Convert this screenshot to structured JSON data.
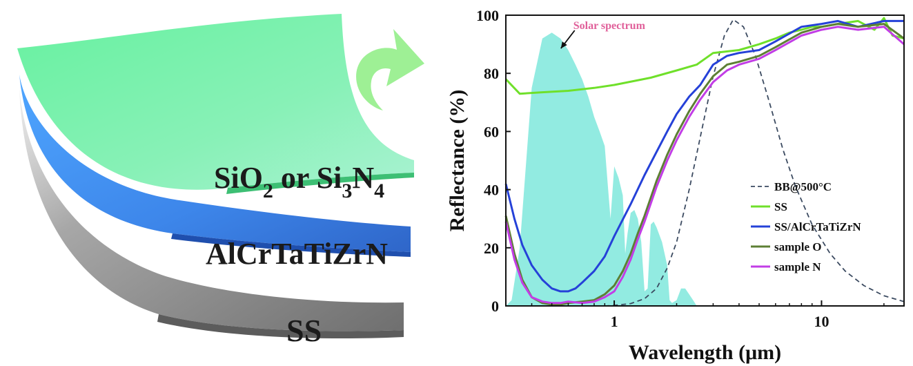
{
  "illustration": {
    "layers": [
      {
        "name": "SiO2 or Si3N4",
        "color": "#7af3a4"
      },
      {
        "name": "AlCrTaTiZrN",
        "color": "#3c8ef0"
      },
      {
        "name": "SS",
        "color": "#8a8a8a"
      }
    ],
    "top_label": {
      "part1": "SiO",
      "sub1": "2",
      "part2": " or Si",
      "sub2": "3",
      "part3": "N",
      "sub3": "4"
    },
    "middle_label": "AlCrTaTiZrN",
    "bottom_label": "SS",
    "arrow_icon": "curved-arrow-icon",
    "arrow_color": "#8ff27a"
  },
  "chart_data": {
    "type": "line",
    "title": "",
    "xlabel": "Wavelength (μm)",
    "ylabel": "Reflectance (%)",
    "xscale": "log",
    "xlim": [
      0.3,
      25
    ],
    "ylim": [
      0,
      100
    ],
    "x_ticks": [
      {
        "value": 1,
        "label": "1"
      },
      {
        "value": 10,
        "label": "10"
      }
    ],
    "y_ticks": [
      {
        "value": 0,
        "label": "0"
      },
      {
        "value": 20,
        "label": "20"
      },
      {
        "value": 40,
        "label": "40"
      },
      {
        "value": 60,
        "label": "60"
      },
      {
        "value": 80,
        "label": "80"
      },
      {
        "value": 100,
        "label": "100"
      }
    ],
    "legend_position": "lower-right",
    "annotation": {
      "text": "Solar spectrum",
      "color": "#e0609a",
      "points_to": [
        0.52,
        90
      ]
    },
    "solar_spectrum": {
      "color": "#7fe8dc",
      "x": [
        0.3,
        0.32,
        0.35,
        0.4,
        0.45,
        0.5,
        0.55,
        0.6,
        0.65,
        0.7,
        0.75,
        0.8,
        0.85,
        0.9,
        0.93,
        0.96,
        1.0,
        1.05,
        1.1,
        1.13,
        1.16,
        1.2,
        1.25,
        1.3,
        1.35,
        1.4,
        1.45,
        1.5,
        1.55,
        1.6,
        1.7,
        1.8,
        1.85,
        1.9,
        2.0,
        2.1,
        2.2,
        2.3,
        2.4,
        2.5
      ],
      "y": [
        0,
        2,
        20,
        75,
        92,
        94,
        92,
        88,
        83,
        78,
        72,
        65,
        60,
        55,
        42,
        30,
        48,
        44,
        38,
        18,
        25,
        32,
        33,
        30,
        22,
        5,
        6,
        28,
        29,
        27,
        22,
        14,
        2,
        1,
        2,
        6,
        6,
        4,
        2,
        0
      ]
    },
    "series": [
      {
        "name": "BB@500°C",
        "color": "#3b4a60",
        "dash": true,
        "x": [
          0.9,
          1.0,
          1.2,
          1.4,
          1.6,
          1.8,
          2.0,
          2.3,
          2.6,
          3.0,
          3.4,
          3.75,
          4.2,
          4.8,
          5.5,
          6.5,
          7.5,
          9,
          11,
          13,
          16,
          20,
          25
        ],
        "y": [
          0,
          0.2,
          0.8,
          2.5,
          6,
          13,
          22,
          40,
          58,
          79,
          93,
          98.5,
          96,
          86,
          72,
          54,
          41,
          28,
          18,
          12,
          7,
          3.5,
          1.5
        ]
      },
      {
        "name": "SS",
        "color": "#6fe02a",
        "dash": false,
        "x": [
          0.3,
          0.35,
          0.45,
          0.6,
          0.8,
          1.0,
          1.5,
          2.0,
          2.5,
          3.0,
          4.0,
          5.0,
          6.0,
          7.0,
          8.0,
          9.0,
          10,
          12,
          15,
          18,
          20,
          22,
          25
        ],
        "y": [
          78,
          73,
          73.5,
          74,
          75,
          76,
          78.5,
          81,
          83,
          87,
          88,
          90,
          92,
          94,
          95,
          96,
          96,
          97,
          98,
          95,
          99,
          93,
          92
        ]
      },
      {
        "name": "SS/AlCrTaTiZrN",
        "color": "#2541d8",
        "dash": false,
        "x": [
          0.3,
          0.33,
          0.36,
          0.4,
          0.45,
          0.5,
          0.55,
          0.6,
          0.65,
          0.7,
          0.8,
          0.9,
          1.0,
          1.2,
          1.4,
          1.6,
          1.8,
          2.0,
          2.3,
          2.6,
          3.0,
          3.5,
          4.0,
          5.0,
          6.0,
          8.0,
          10,
          12,
          15,
          20,
          25
        ],
        "y": [
          42,
          30,
          21,
          14,
          9,
          6,
          5,
          5,
          6,
          8,
          12,
          17,
          24,
          35,
          45,
          53,
          60,
          66,
          72,
          76,
          83,
          86,
          87,
          88,
          91,
          96,
          97,
          98,
          96,
          98,
          98
        ]
      },
      {
        "name": "sample O",
        "color": "#5d7f34",
        "dash": false,
        "x": [
          0.3,
          0.33,
          0.36,
          0.4,
          0.45,
          0.5,
          0.55,
          0.6,
          0.7,
          0.8,
          0.9,
          1.0,
          1.1,
          1.2,
          1.3,
          1.4,
          1.6,
          1.8,
          2.0,
          2.3,
          2.6,
          3.0,
          3.5,
          4.0,
          5.0,
          6.0,
          8.0,
          10,
          12,
          15,
          20,
          25
        ],
        "y": [
          31,
          18,
          9,
          3,
          1,
          0.5,
          0.5,
          1,
          1.5,
          2,
          4,
          7,
          12,
          18,
          25,
          31,
          43,
          52,
          59,
          67,
          73,
          79,
          83,
          84,
          86,
          89,
          94,
          96,
          97,
          96,
          97,
          92
        ]
      },
      {
        "name": "sample N",
        "color": "#c23de6",
        "dash": false,
        "x": [
          0.3,
          0.33,
          0.36,
          0.4,
          0.45,
          0.5,
          0.55,
          0.6,
          0.7,
          0.8,
          0.9,
          1.0,
          1.1,
          1.2,
          1.3,
          1.4,
          1.6,
          1.8,
          2.0,
          2.3,
          2.6,
          3.0,
          3.5,
          4.0,
          5.0,
          6.0,
          8.0,
          10,
          12,
          15,
          20,
          25
        ],
        "y": [
          29,
          16,
          8,
          3,
          1.5,
          1,
          1,
          1.5,
          1,
          1.5,
          3,
          5,
          10,
          16,
          23,
          29,
          41,
          50,
          57,
          65,
          71,
          77,
          81,
          83,
          85,
          88,
          93,
          95,
          96,
          95,
          96,
          90
        ]
      }
    ]
  }
}
